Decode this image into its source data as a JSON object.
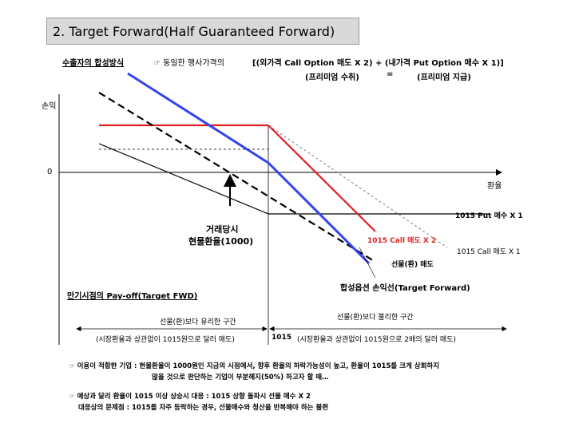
{
  "title": "2. Target Forward(Half Guaranteed Forward)",
  "header": {
    "strategy_label": "수출자의 합성방식",
    "note_prefix": "☞ 동일한 행사가격의",
    "formula_line1": "[(외가격 Call Option 매도 X 2) + (내가격 Put Option 매수 X 1)]",
    "formula_line2_left": "(프리미엄 수취)",
    "formula_line2_eq": "=",
    "formula_line2_right": "(프리미엄 지급)"
  },
  "chart": {
    "y_axis_label": "손익",
    "zero_label": "0",
    "x_axis_label": "환율",
    "put_label": "1015 Put 매수 X 1",
    "trade_label_1": "거래당시",
    "trade_label_2": "현물환율(1000)",
    "call_red_label": "1015 Call 매도 X 2",
    "call_gray_label": "1015 Call 매도 X 1",
    "futures_label": "선물(환) 매도",
    "synthetic_label": "합성옵션 손익선(Target Forward)",
    "maturity_label": "만기시점의 Pay-off(Target FWD)",
    "favorable_label": "선물(환)보다 유리한 구간",
    "unfavorable_label": "선물(환)보다 불리한 구간",
    "left_range_label": "(시장환율과 상관없이 1015원으로 달러 매도)",
    "strike_label": "1015",
    "right_range_label": "(시장환율과 상관없이 1015원으로 2배의 달러 매도)"
  },
  "notes": [
    "☞ 이용이 적합한 기업 : 현물환율이 1000원인 지금의 시점에서, 향후 환율의 하락가능성이 높고, 환율이 1015를 크게 상회하지",
    "않을 것으로 판단하는 기업이 부분헤지(50%) 하고자 할 때…",
    "☞ 예상과 달리 환율이 1015 이상 상승시 대응 : 1015 상향 돌파시 선물 매수 X 2",
    "대응상의 문제점 : 1015를 자주 등락하는 경우, 선물매수와 청산을 반복해야 하는 불편"
  ],
  "colors": {
    "red": "#e02020",
    "blue": "#3344ee",
    "black": "#000000",
    "gray": "#808080",
    "title_bg": "#d9d9d9"
  }
}
